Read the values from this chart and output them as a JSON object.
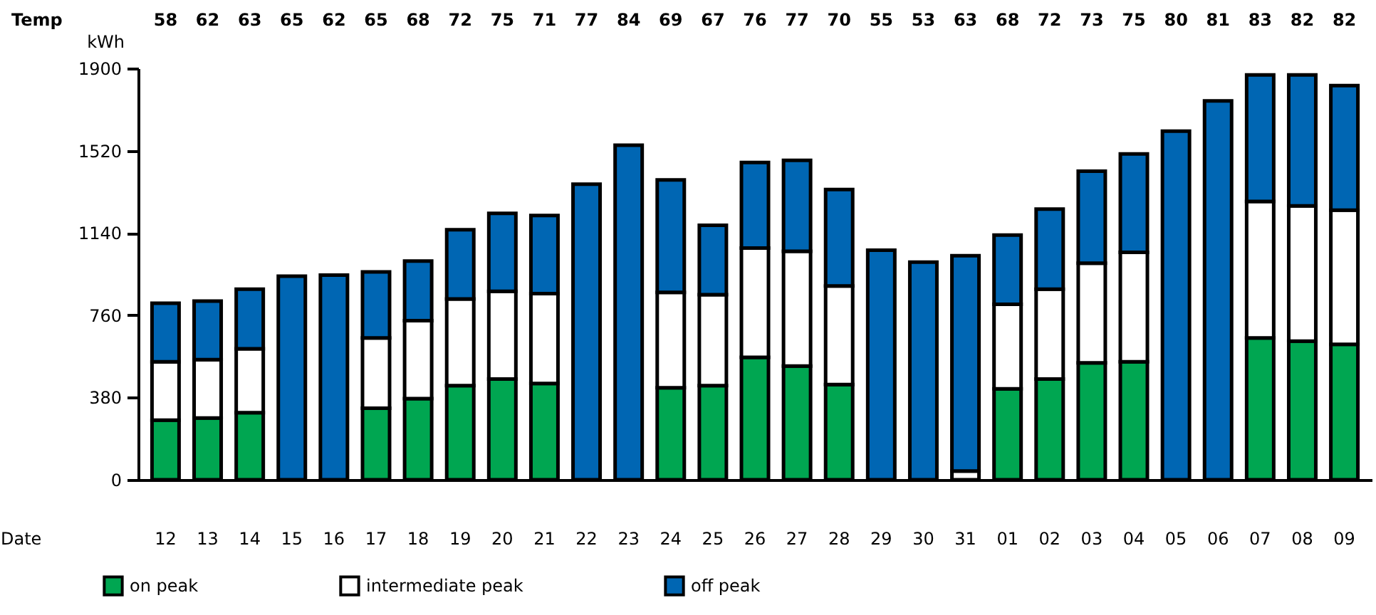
{
  "chart_data": {
    "type": "bar",
    "stacked": true,
    "xlabel": "Date",
    "ylabel": "kWh",
    "categories": [
      "12",
      "13",
      "14",
      "15",
      "16",
      "17",
      "18",
      "19",
      "20",
      "21",
      "22",
      "23",
      "24",
      "25",
      "26",
      "27",
      "28",
      "29",
      "30",
      "31",
      "01",
      "02",
      "03",
      "04",
      "05",
      "06",
      "07",
      "08",
      "09"
    ],
    "series": [
      {
        "name": "on peak",
        "color": "#00a651",
        "values": [
          275,
          285,
          310,
          0,
          0,
          330,
          375,
          435,
          465,
          445,
          0,
          0,
          425,
          435,
          565,
          525,
          440,
          0,
          0,
          0,
          420,
          465,
          540,
          545,
          0,
          0,
          655,
          640,
          625
        ]
      },
      {
        "name": "intermediate peak",
        "color": "#ffffff",
        "values": [
          270,
          270,
          295,
          0,
          0,
          325,
          360,
          400,
          405,
          415,
          0,
          0,
          440,
          420,
          505,
          530,
          455,
          0,
          0,
          40,
          390,
          415,
          460,
          505,
          0,
          0,
          630,
          625,
          620
        ]
      },
      {
        "name": "off peak",
        "color": "#0066b3",
        "values": [
          270,
          270,
          275,
          940,
          945,
          305,
          275,
          320,
          360,
          360,
          1365,
          1545,
          520,
          320,
          395,
          420,
          445,
          1060,
          1005,
          995,
          320,
          370,
          425,
          455,
          1610,
          1750,
          585,
          605,
          575
        ]
      }
    ],
    "ylim": [
      0,
      1900
    ],
    "yticks": [
      0,
      380,
      760,
      1140,
      1520,
      1900
    ],
    "grid": false,
    "legend": "bottom",
    "annotations": [
      "Temp",
      "58",
      "62",
      "63",
      "65",
      "62",
      "65",
      "68",
      "72",
      "75",
      "71",
      "77",
      "84",
      "69",
      "67",
      "76",
      "77",
      "70",
      "55",
      "53",
      "63",
      "68",
      "72",
      "73",
      "75",
      "80",
      "81",
      "83",
      "82",
      "82"
    ]
  }
}
